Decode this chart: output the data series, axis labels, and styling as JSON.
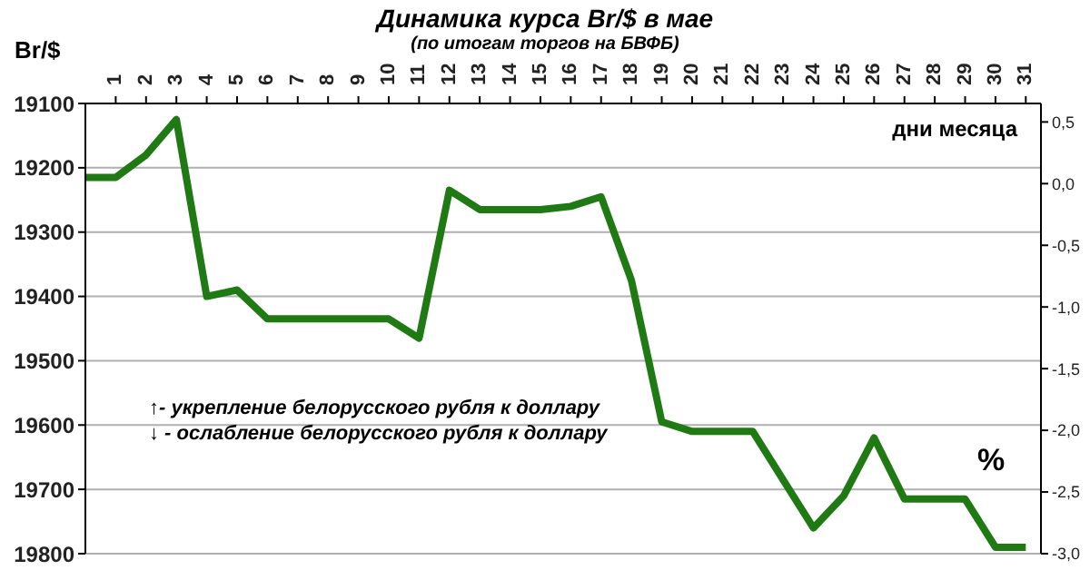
{
  "chart_data": {
    "type": "line",
    "title": "Динамика курса Br/$ в мае",
    "subtitle": "(по итогам торгов на БВФБ)",
    "xlabel": "дни месяца",
    "ylabel": "Br/$",
    "y2label": "%",
    "annotations": [
      "↑- укрепление белорусского рубля к доллару",
      "↓ - ослабление белорусского рубля к доллару"
    ],
    "x": [
      0,
      1,
      2,
      3,
      4,
      5,
      6,
      7,
      8,
      9,
      10,
      11,
      12,
      13,
      14,
      15,
      16,
      17,
      18,
      19,
      20,
      21,
      22,
      23,
      24,
      25,
      26,
      27,
      28,
      29,
      30,
      31
    ],
    "series": [
      {
        "color": "#1f7a14",
        "values": [
          19215,
          19215,
          19180,
          19125,
          19400,
          19390,
          19435,
          19435,
          19435,
          19435,
          19435,
          19465,
          19235,
          19265,
          19265,
          19265,
          19260,
          19245,
          19375,
          19595,
          19610,
          19610,
          19610,
          19685,
          19760,
          19710,
          19620,
          19715,
          19715,
          19715,
          19790,
          19790
        ]
      }
    ],
    "xlim": [
      0,
      31.5
    ],
    "xticks": [
      1,
      2,
      3,
      4,
      5,
      6,
      7,
      8,
      9,
      10,
      11,
      12,
      13,
      14,
      15,
      16,
      17,
      18,
      19,
      20,
      21,
      22,
      23,
      24,
      25,
      26,
      27,
      28,
      29,
      30,
      31
    ],
    "ylim": [
      19800,
      19100
    ],
    "yticks": [
      19100,
      19200,
      19300,
      19400,
      19500,
      19600,
      19700,
      19800
    ],
    "y2lim": [
      -3.0,
      0.65
    ],
    "y2ticks": [
      {
        "value": 0.5,
        "label": "0,5"
      },
      {
        "value": 0,
        "label": "0,0"
      },
      {
        "value": -0.5,
        "label": "-0,5"
      },
      {
        "value": -1,
        "label": "-1,0"
      },
      {
        "value": -1.5,
        "label": "-1,5"
      },
      {
        "value": -2,
        "label": "-2,0"
      },
      {
        "value": -2.5,
        "label": "-2,5"
      },
      {
        "value": -3,
        "label": "-3,0"
      }
    ],
    "grid": "y",
    "line_style": "solid"
  }
}
